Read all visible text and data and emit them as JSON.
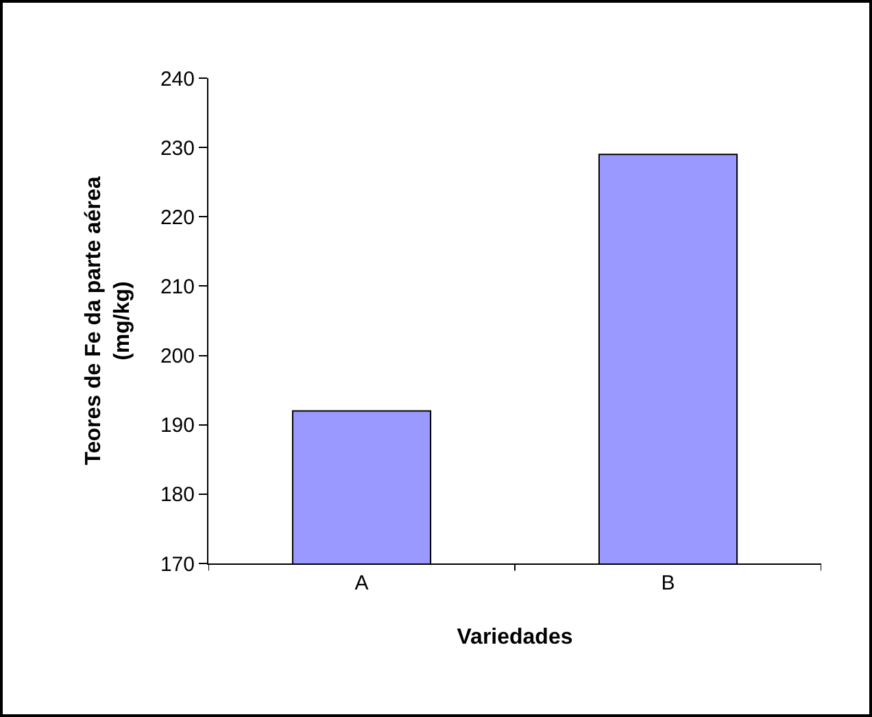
{
  "chart_data": {
    "type": "bar",
    "xlabel": "Variedades",
    "ylabel": "Teores de Fe da parte aérea\n(mg/kg)",
    "categories": [
      "A",
      "B"
    ],
    "values": [
      192,
      229
    ],
    "color": "#9999ff",
    "ylim": [
      170,
      240
    ],
    "yticks": [
      170,
      180,
      190,
      200,
      210,
      220,
      230,
      240
    ],
    "grid": false
  }
}
